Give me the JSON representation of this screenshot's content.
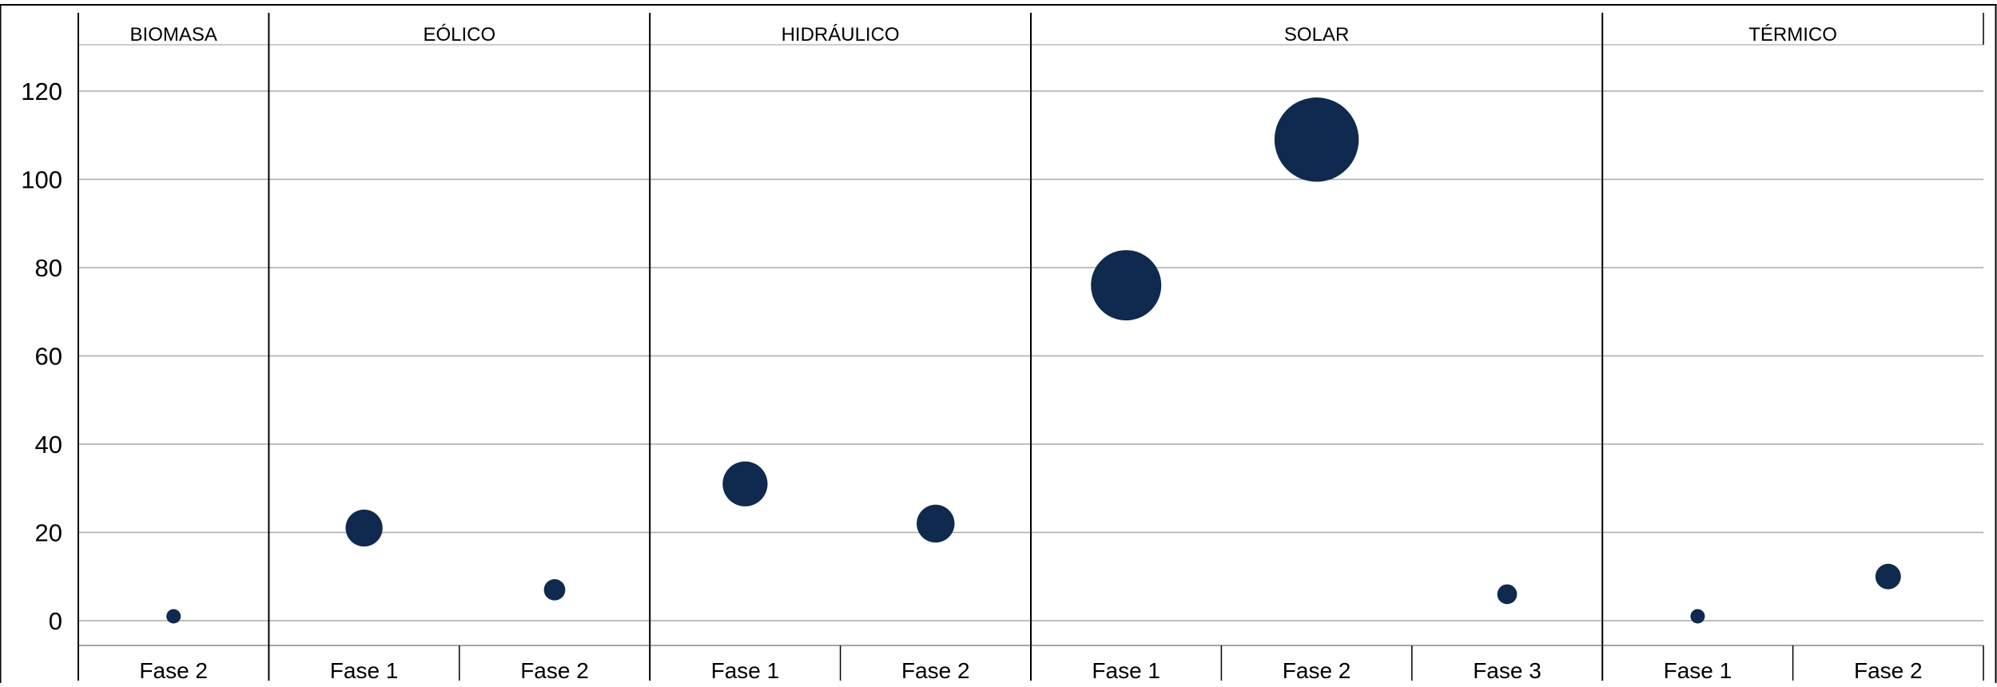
{
  "chart_data": {
    "type": "scatter",
    "groups": [
      {
        "label": "BIOMASA",
        "categories": [
          "Fase 2"
        ]
      },
      {
        "label": "EÓLICO",
        "categories": [
          "Fase 1",
          "Fase 2"
        ]
      },
      {
        "label": "HIDRÁULICO",
        "categories": [
          "Fase 1",
          "Fase 2"
        ]
      },
      {
        "label": "SOLAR",
        "categories": [
          "Fase 1",
          "Fase 2",
          "Fase 3"
        ]
      },
      {
        "label": "TÉRMICO",
        "categories": [
          "Fase 1",
          "Fase 2"
        ]
      }
    ],
    "points": [
      {
        "group": "BIOMASA",
        "category": "Fase 2",
        "value": 1,
        "size": 1
      },
      {
        "group": "EÓLICO",
        "category": "Fase 1",
        "value": 21,
        "size": 21
      },
      {
        "group": "EÓLICO",
        "category": "Fase 2",
        "value": 7,
        "size": 7
      },
      {
        "group": "HIDRÁULICO",
        "category": "Fase 1",
        "value": 31,
        "size": 31
      },
      {
        "group": "HIDRÁULICO",
        "category": "Fase 2",
        "value": 22,
        "size": 22
      },
      {
        "group": "SOLAR",
        "category": "Fase 1",
        "value": 76,
        "size": 76
      },
      {
        "group": "SOLAR",
        "category": "Fase 2",
        "value": 109,
        "size": 109
      },
      {
        "group": "SOLAR",
        "category": "Fase 3",
        "value": 6,
        "size": 6
      },
      {
        "group": "TÉRMICO",
        "category": "Fase 1",
        "value": 1,
        "size": 1
      },
      {
        "group": "TÉRMICO",
        "category": "Fase 2",
        "value": 10,
        "size": 10
      }
    ],
    "y_ticks": [
      "0",
      "20",
      "40",
      "60",
      "80",
      "100",
      "120"
    ],
    "ylim": [
      -6,
      130
    ],
    "grid": true,
    "legend": "none",
    "marker_color": "#0f2a4e"
  }
}
